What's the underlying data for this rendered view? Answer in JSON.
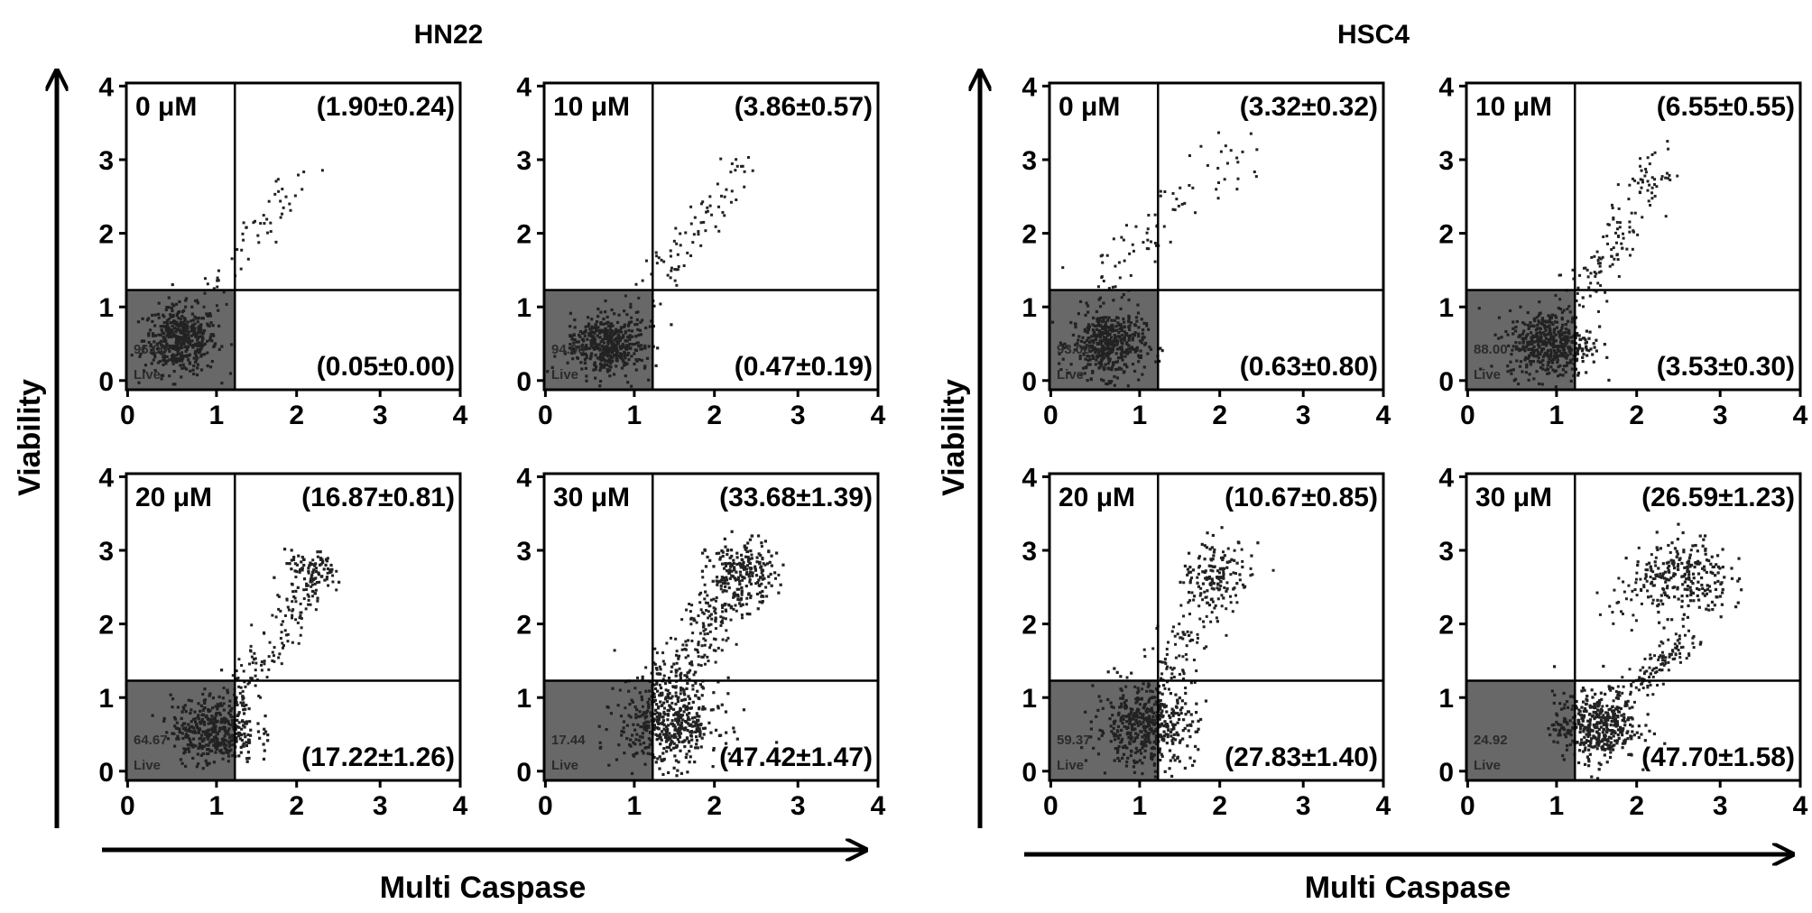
{
  "figure": {
    "xlabel": "Multi Caspase",
    "ylabel": "Viability"
  },
  "chart_data": [
    {
      "type": "scatter",
      "group": "HN22",
      "dose": "0 μM",
      "xlabel": "Multi Caspase",
      "ylabel": "Viability",
      "xlim": [
        0,
        4
      ],
      "ylim": [
        0,
        4
      ],
      "xticks": [
        "0",
        "1",
        "2",
        "3",
        "4"
      ],
      "yticks": [
        "0",
        "1",
        "2",
        "3",
        "4"
      ],
      "gate": {
        "x": 1.3,
        "y": 1.3
      },
      "quadrant_labels": {
        "upper_right": "(1.90±0.24)",
        "lower_right": "(0.05±0.00)",
        "live_percent": "96.00",
        "live": "Live"
      },
      "clusters": [
        {
          "cx": 0.65,
          "cy": 0.65,
          "sx": 0.22,
          "sy": 0.22,
          "n": 450
        }
      ],
      "tails": [
        {
          "x1": 0.9,
          "y1": 1.05,
          "x2": 2.15,
          "y2": 2.85,
          "n": 55,
          "w": 0.16
        }
      ]
    },
    {
      "type": "scatter",
      "group": "HN22",
      "dose": "10 μM",
      "xlabel": "Multi Caspase",
      "ylabel": "Viability",
      "xlim": [
        0,
        4
      ],
      "ylim": [
        0,
        4
      ],
      "xticks": [
        "0",
        "1",
        "2",
        "3",
        "4"
      ],
      "yticks": [
        "0",
        "1",
        "2",
        "3",
        "4"
      ],
      "gate": {
        "x": 1.3,
        "y": 1.3
      },
      "quadrant_labels": {
        "upper_right": "(3.86±0.57)",
        "lower_right": "(0.47±0.19)",
        "live_percent": "94.00",
        "live": "Live"
      },
      "clusters": [
        {
          "cx": 0.75,
          "cy": 0.6,
          "sx": 0.22,
          "sy": 0.2,
          "n": 450
        }
      ],
      "tails": [
        {
          "x1": 1.05,
          "y1": 1.0,
          "x2": 2.45,
          "y2": 3.05,
          "n": 85,
          "w": 0.18
        }
      ]
    },
    {
      "type": "scatter",
      "group": "HSC4",
      "dose": "0 μM",
      "xlabel": "Multi Caspase",
      "ylabel": "Viability",
      "xlim": [
        0,
        4
      ],
      "ylim": [
        0,
        4
      ],
      "xticks": [
        "0",
        "1",
        "2",
        "3",
        "4"
      ],
      "yticks": [
        "0",
        "1",
        "2",
        "3",
        "4"
      ],
      "gate": {
        "x": 1.3,
        "y": 1.3
      },
      "quadrant_labels": {
        "upper_right": "(3.32±0.32)",
        "lower_right": "(0.63±0.80)",
        "live_percent": "93.00",
        "live": "Live"
      },
      "clusters": [
        {
          "cx": 0.7,
          "cy": 0.6,
          "sx": 0.22,
          "sy": 0.22,
          "n": 450
        }
      ],
      "tails": [
        {
          "x1": 0.6,
          "y1": 1.3,
          "x2": 2.3,
          "y2": 3.2,
          "n": 80,
          "w": 0.25
        }
      ]
    },
    {
      "type": "scatter",
      "group": "HSC4",
      "dose": "10 μM",
      "xlabel": "Multi Caspase",
      "ylabel": "Viability",
      "xlim": [
        0,
        4
      ],
      "ylim": [
        0,
        4
      ],
      "xticks": [
        "0",
        "1",
        "2",
        "3",
        "4"
      ],
      "yticks": [
        "0",
        "1",
        "2",
        "3",
        "4"
      ],
      "gate": {
        "x": 1.3,
        "y": 1.3
      },
      "quadrant_labels": {
        "upper_right": "(6.55±0.55)",
        "lower_right": "(3.53±0.30)",
        "live_percent": "88.00",
        "live": "Live"
      },
      "clusters": [
        {
          "cx": 1.0,
          "cy": 0.6,
          "sx": 0.25,
          "sy": 0.22,
          "n": 450
        }
      ],
      "tails": [
        {
          "x1": 1.3,
          "y1": 1.0,
          "x2": 2.3,
          "y2": 3.05,
          "n": 140,
          "w": 0.2
        }
      ]
    },
    {
      "type": "scatter",
      "group": "HN22",
      "dose": "20 μM",
      "xlabel": "Multi Caspase",
      "ylabel": "Viability",
      "xlim": [
        0,
        4
      ],
      "ylim": [
        0,
        4
      ],
      "xticks": [
        "0",
        "1",
        "2",
        "3",
        "4"
      ],
      "yticks": [
        "0",
        "1",
        "2",
        "3",
        "4"
      ],
      "gate": {
        "x": 1.3,
        "y": 1.3
      },
      "quadrant_labels": {
        "upper_right": "(16.87±0.81)",
        "lower_right": "(17.22±1.26)",
        "live_percent": "64.67",
        "live": "Live"
      },
      "clusters": [
        {
          "cx": 1.05,
          "cy": 0.65,
          "sx": 0.25,
          "sy": 0.22,
          "n": 420
        },
        {
          "cx": 2.2,
          "cy": 2.75,
          "sx": 0.15,
          "sy": 0.12,
          "n": 70
        }
      ],
      "tails": [
        {
          "x1": 1.3,
          "y1": 1.0,
          "x2": 2.4,
          "y2": 2.9,
          "n": 160,
          "w": 0.17
        }
      ]
    },
    {
      "type": "scatter",
      "group": "HN22",
      "dose": "30 μM",
      "xlabel": "Multi Caspase",
      "ylabel": "Viability",
      "xlim": [
        0,
        4
      ],
      "ylim": [
        0,
        4
      ],
      "xticks": [
        "0",
        "1",
        "2",
        "3",
        "4"
      ],
      "yticks": [
        "0",
        "1",
        "2",
        "3",
        "4"
      ],
      "gate": {
        "x": 1.3,
        "y": 1.3
      },
      "quadrant_labels": {
        "upper_right": "(33.68±1.39)",
        "lower_right": "(47.42±1.47)",
        "live_percent": "17.44",
        "live": "Live"
      },
      "clusters": [
        {
          "cx": 1.5,
          "cy": 0.75,
          "sx": 0.3,
          "sy": 0.28,
          "n": 480
        },
        {
          "cx": 2.35,
          "cy": 2.7,
          "sx": 0.2,
          "sy": 0.22,
          "n": 180
        }
      ],
      "tails": [
        {
          "x1": 1.3,
          "y1": 1.0,
          "x2": 2.6,
          "y2": 2.9,
          "n": 280,
          "w": 0.25
        }
      ]
    },
    {
      "type": "scatter",
      "group": "HSC4",
      "dose": "20 μM",
      "xlabel": "Multi Caspase",
      "ylabel": "Viability",
      "xlim": [
        0,
        4
      ],
      "ylim": [
        0,
        4
      ],
      "xticks": [
        "0",
        "1",
        "2",
        "3",
        "4"
      ],
      "yticks": [
        "0",
        "1",
        "2",
        "3",
        "4"
      ],
      "gate": {
        "x": 1.3,
        "y": 1.3
      },
      "quadrant_labels": {
        "upper_right": "(10.67±0.85)",
        "lower_right": "(27.83±1.40)",
        "live_percent": "59.37",
        "live": "Live"
      },
      "clusters": [
        {
          "cx": 1.15,
          "cy": 0.7,
          "sx": 0.3,
          "sy": 0.25,
          "n": 460
        },
        {
          "cx": 2.0,
          "cy": 2.75,
          "sx": 0.2,
          "sy": 0.2,
          "n": 90
        }
      ],
      "tails": [
        {
          "x1": 1.2,
          "y1": 1.05,
          "x2": 2.2,
          "y2": 2.9,
          "n": 170,
          "w": 0.24
        }
      ]
    },
    {
      "type": "scatter",
      "group": "HSC4",
      "dose": "30 μM",
      "xlabel": "Multi Caspase",
      "ylabel": "Viability",
      "xlim": [
        0,
        4
      ],
      "ylim": [
        0,
        4
      ],
      "xticks": [
        "0",
        "1",
        "2",
        "3",
        "4"
      ],
      "yticks": [
        "0",
        "1",
        "2",
        "3",
        "4"
      ],
      "gate": {
        "x": 1.3,
        "y": 1.3
      },
      "quadrant_labels": {
        "upper_right": "(26.59±1.23)",
        "lower_right": "(47.70±1.58)",
        "live_percent": "24.92",
        "live": "Live"
      },
      "clusters": [
        {
          "cx": 1.55,
          "cy": 0.7,
          "sx": 0.25,
          "sy": 0.22,
          "n": 420
        },
        {
          "cx": 2.65,
          "cy": 2.65,
          "sx": 0.25,
          "sy": 0.28,
          "n": 200
        }
      ],
      "tails": [
        {
          "x1": 1.6,
          "y1": 0.8,
          "x2": 2.7,
          "y2": 1.9,
          "n": 150,
          "w": 0.13
        },
        {
          "x1": 1.7,
          "y1": 2.2,
          "x2": 2.6,
          "y2": 2.9,
          "n": 80,
          "w": 0.22
        }
      ]
    }
  ]
}
